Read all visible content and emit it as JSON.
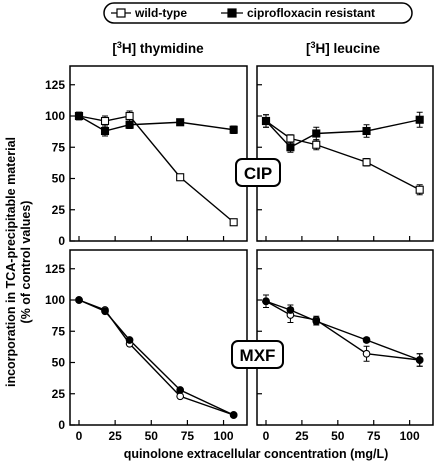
{
  "legend": {
    "wild_type": "wild-type",
    "resistant": "ciprofloxacin resistant"
  },
  "columns": {
    "left_prefix": "[",
    "left_sup": "3",
    "left_suffix": "H] thymidine",
    "right_prefix": "[",
    "right_sup": "3",
    "right_suffix": "H] leucine"
  },
  "axes": {
    "ylabel_line1": "incorporation in TCA-precipitable material",
    "ylabel_line2": "(% of control values)",
    "xlabel": "quinolone extracellular concentration (mg/L)",
    "yticks": [
      0,
      25,
      50,
      75,
      100,
      125
    ],
    "xticks": [
      0,
      25,
      50,
      75,
      100
    ]
  },
  "drugs": {
    "top": "CIP",
    "bottom": "MXF"
  },
  "chart_data": [
    {
      "type": "line",
      "panel": "top-left",
      "xlim": [
        0,
        110
      ],
      "ylim": [
        0,
        140
      ],
      "series": [
        {
          "name": "wild-type",
          "x": [
            0,
            18,
            35,
            70,
            107
          ],
          "y": [
            100,
            96,
            100,
            51,
            15
          ],
          "err": [
            3,
            4,
            4,
            2,
            2
          ]
        },
        {
          "name": "ciprofloxacin resistant",
          "x": [
            0,
            18,
            35,
            70,
            107
          ],
          "y": [
            100,
            88,
            93,
            95,
            89
          ],
          "err": [
            3,
            4,
            3,
            2,
            3
          ]
        }
      ]
    },
    {
      "type": "line",
      "panel": "top-right",
      "xlim": [
        0,
        110
      ],
      "ylim": [
        0,
        140
      ],
      "series": [
        {
          "name": "wild-type",
          "x": [
            0,
            17,
            35,
            70,
            107
          ],
          "y": [
            96,
            82,
            77,
            63,
            41
          ],
          "err": [
            5,
            3,
            4,
            3,
            4
          ]
        },
        {
          "name": "ciprofloxacin resistant",
          "x": [
            0,
            17,
            35,
            70,
            107
          ],
          "y": [
            96,
            75,
            86,
            88,
            97
          ],
          "err": [
            5,
            4,
            5,
            5,
            6
          ]
        }
      ]
    },
    {
      "type": "line",
      "panel": "bottom-left",
      "xlim": [
        0,
        110
      ],
      "ylim": [
        0,
        140
      ],
      "series": [
        {
          "name": "wild-type",
          "x": [
            0,
            18,
            35,
            70,
            107
          ],
          "y": [
            100,
            92,
            65,
            23,
            8
          ],
          "err": [
            0,
            0,
            0,
            0,
            0
          ]
        },
        {
          "name": "ciprofloxacin resistant",
          "x": [
            0,
            18,
            35,
            70,
            107
          ],
          "y": [
            100,
            91,
            68,
            28,
            8
          ],
          "err": [
            0,
            0,
            0,
            0,
            0
          ]
        }
      ]
    },
    {
      "type": "line",
      "panel": "bottom-right",
      "xlim": [
        0,
        110
      ],
      "ylim": [
        0,
        140
      ],
      "series": [
        {
          "name": "wild-type",
          "x": [
            0,
            17,
            35,
            70,
            107
          ],
          "y": [
            99,
            88,
            84,
            57,
            52
          ],
          "err": [
            5,
            6,
            3,
            6,
            5
          ]
        },
        {
          "name": "ciprofloxacin resistant",
          "x": [
            0,
            17,
            35,
            70,
            107
          ],
          "y": [
            99,
            92,
            83,
            68,
            52
          ],
          "err": [
            5,
            4,
            3,
            2,
            5
          ]
        }
      ]
    }
  ]
}
